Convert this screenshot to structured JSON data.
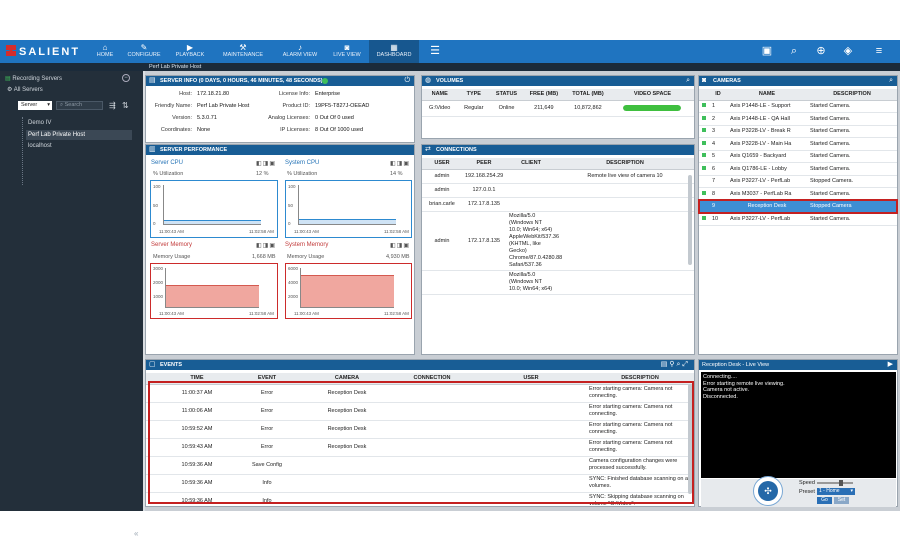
{
  "app": {
    "brand": "SALIENT"
  },
  "nav": [
    {
      "label": "HOME",
      "icon": "home-icon",
      "glyph": "⌂"
    },
    {
      "label": "CONFIGURE",
      "icon": "wrench-icon",
      "glyph": "✎"
    },
    {
      "label": "PLAYBACK",
      "icon": "play-icon",
      "glyph": "▶"
    },
    {
      "label": "MAINTENANCE",
      "icon": "maintenance-icon",
      "glyph": "⚒"
    },
    {
      "label": "ALARM VIEW",
      "icon": "bell-icon",
      "glyph": "♪"
    },
    {
      "label": "LIVE VIEW",
      "icon": "camera-icon",
      "glyph": "◙"
    },
    {
      "label": "DASHBOARD",
      "icon": "dashboard-icon",
      "glyph": "▦"
    }
  ],
  "breadcrumb": "Perf Lab Private Host",
  "sidebar": {
    "recording_servers": "Recording Servers",
    "all_servers": "All Servers",
    "server_select": "Server",
    "search_placeholder": "Search",
    "tree": [
      "Demo IV",
      "Perf Lab Private Host",
      "localhost"
    ]
  },
  "server_info": {
    "title": "SERVER INFO (0 DAYS, 0 HOURS, 46 MINUTES, 48 SECONDS)",
    "left": [
      {
        "k": "Host:",
        "v": "172.18.21.80"
      },
      {
        "k": "Friendly Name:",
        "v": "Perf Lab Private Host"
      },
      {
        "k": "Version:",
        "v": "5.3.0.71"
      },
      {
        "k": "Coordinates:",
        "v": "None"
      }
    ],
    "right": [
      {
        "k": "License Info:",
        "v": "Enterprise"
      },
      {
        "k": "Product ID:",
        "v": "19PF5-T827J-OEEAD"
      },
      {
        "k": "Analog Licenses:",
        "v": "0 Out Of 0 used"
      },
      {
        "k": "IP Licenses:",
        "v": "8 Out Of 1000 used"
      }
    ]
  },
  "performance": {
    "title": "SERVER PERFORMANCE",
    "charts": [
      {
        "title": "Server CPU",
        "metric": "% Utilization",
        "value": "12 %",
        "ymax": "100",
        "ymid": "50",
        "ymin": "0",
        "t0": "11:00:43 AM",
        "t1": "11:02:58 AM",
        "level": 0.1
      },
      {
        "title": "System CPU",
        "metric": "% Utilization",
        "value": "14 %",
        "ymax": "100",
        "ymid": "50",
        "ymin": "0",
        "t0": "11:00:43 AM",
        "t1": "11:02:58 AM",
        "level": 0.12
      },
      {
        "title": "Server Memory",
        "metric": "Memory Usage",
        "value": "1,668 MB",
        "ymax": "3000",
        "ymid": "2000",
        "ymin": "1000",
        "t0": "11:00:43 AM",
        "t1": "11:02:58 AM",
        "level": 0.56
      },
      {
        "title": "System Memory",
        "metric": "Memory Usage",
        "value": "4,930 MB",
        "ymax": "6000",
        "ymid": "4000",
        "ymin": "2000",
        "t0": "11:00:43 AM",
        "t1": "11:02:58 AM",
        "level": 0.82
      }
    ]
  },
  "volumes": {
    "title": "VOLUMES",
    "columns": [
      "NAME",
      "TYPE",
      "STATUS",
      "FREE (MB)",
      "TOTAL (MB)",
      "VIDEO SPACE"
    ],
    "rows": [
      [
        "G:\\Video",
        "Regular",
        "Online",
        "211,649",
        "10,872,862"
      ]
    ],
    "space_used": 1.0
  },
  "connections": {
    "title": "CONNECTIONS",
    "columns": [
      "USER",
      "PEER",
      "CLIENT",
      "DESCRIPTION"
    ],
    "rows": [
      [
        "admin",
        "192.168.254.29",
        "",
        "Remote live view of camera 10"
      ],
      [
        "admin",
        "127.0.0.1",
        "",
        ""
      ],
      [
        "brian.carle",
        "172.17.8.135",
        "",
        ""
      ],
      [
        "admin",
        "172.17.8.135",
        "Mozilla/5.0 (Windows NT 10.0; Win64; x64) AppleWebKit/537.36 (KHTML, like Gecko) Chrome/87.0.4280.88 Safari/537.36",
        ""
      ],
      [
        "",
        "",
        "Mozilla/5.0 (Windows NT 10.0; Win64; x64)",
        ""
      ]
    ]
  },
  "cameras": {
    "title": "CAMERAS",
    "columns": [
      "ID",
      "NAME",
      "DESCRIPTION"
    ],
    "rows": [
      [
        "1",
        "Axis P1448-LE - Support",
        "Started Camera."
      ],
      [
        "2",
        "Axis P1448-LE - QA Hall",
        "Started Camera."
      ],
      [
        "3",
        "Axis P3228-LV - Break R",
        "Started Camera."
      ],
      [
        "4",
        "Axis P3228-LV - Main Ha",
        "Started Camera."
      ],
      [
        "5",
        "Axis Q1659 - Backyard",
        "Started Camera."
      ],
      [
        "6",
        "Axis Q1786-LE - Lobby",
        "Started Camera."
      ],
      [
        "7",
        "Axis P3227-LV - PerfLab",
        "Stopped Camera."
      ],
      [
        "8",
        "Axis M3037 - PerfLab Ra",
        "Started Camera."
      ],
      [
        "9",
        "Reception Desk",
        "Stopped Camera"
      ],
      [
        "10",
        "Axis P3227-LV - PerfLab",
        "Started Camera."
      ]
    ]
  },
  "events": {
    "title": "EVENTS",
    "columns": [
      "TIME",
      "EVENT",
      "CAMERA",
      "CONNECTION",
      "USER",
      "DESCRIPTION"
    ],
    "rows": [
      [
        "11:00:37 AM",
        "Error",
        "Reception Desk",
        "",
        "",
        "Error starting camera: Camera not connecting."
      ],
      [
        "11:00:06 AM",
        "Error",
        "Reception Desk",
        "",
        "",
        "Error starting camera: Camera not connecting."
      ],
      [
        "10:59:52 AM",
        "Error",
        "Reception Desk",
        "",
        "",
        "Error starting camera: Camera not connecting."
      ],
      [
        "10:59:43 AM",
        "Error",
        "Reception Desk",
        "",
        "",
        "Error starting camera: Camera not connecting."
      ],
      [
        "10:59:36 AM",
        "Save Config",
        "",
        "",
        "",
        "Camera configuration changes were processed successfully."
      ],
      [
        "10:59:36 AM",
        "Info",
        "",
        "",
        "",
        "SYNC: Finished database scanning on all volumes."
      ],
      [
        "10:59:36 AM",
        "Info",
        "",
        "",
        "",
        "SYNC: Skipping database scanning on volume \"G:\\Video\"."
      ]
    ]
  },
  "live_view": {
    "title": "Reception Desk - Live View",
    "log": [
      "Connecting....",
      "Error starting remote live viewing.",
      "Camera not active.",
      "Disconnected."
    ],
    "speed_label": "Speed",
    "preset_label": "Preset",
    "preset_value": "1 - Home",
    "go_label": "Go",
    "set_label": "Set"
  }
}
